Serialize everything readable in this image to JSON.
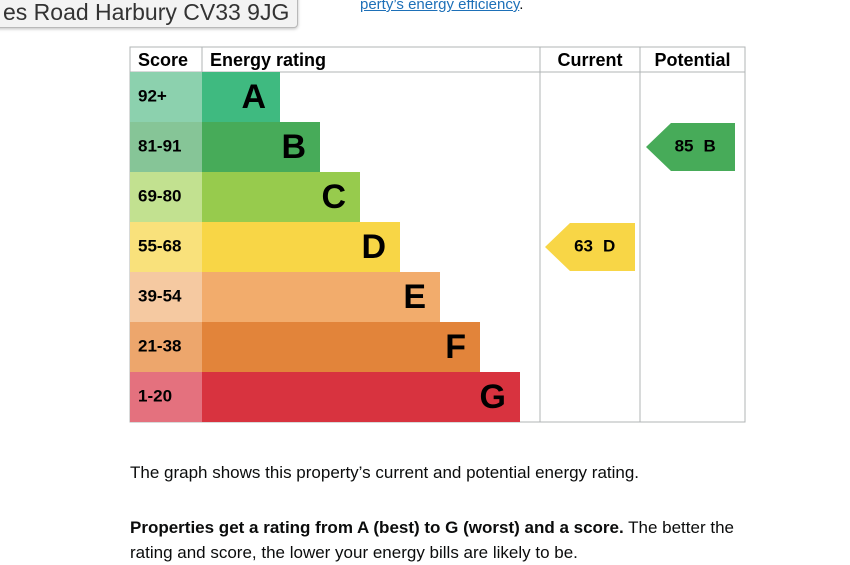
{
  "tooltip": "es Road Harbury CV33 9JG",
  "link": {
    "text": "perty’s energy efficiency",
    "suffix": "."
  },
  "epc": {
    "headers": [
      "Score",
      "Energy rating",
      "Current",
      "Potential"
    ],
    "rows": [
      {
        "score": "92+",
        "band": "A"
      },
      {
        "score": "81-91",
        "band": "B"
      },
      {
        "score": "69-80",
        "band": "C"
      },
      {
        "score": "55-68",
        "band": "D"
      },
      {
        "score": "39-54",
        "band": "E"
      },
      {
        "score": "21-38",
        "band": "F"
      },
      {
        "score": "1-20",
        "band": "G"
      }
    ],
    "current": {
      "score": 63,
      "band": "D"
    },
    "potential": {
      "score": 85,
      "band": "B"
    }
  },
  "paragraphs": [
    {
      "text": "The graph shows this property’s current and potential energy rating."
    },
    {
      "bold": "Properties get a rating from A (best) to G (worst) and a score.",
      "text": " The better the rating and score, the lower your energy bills are likely to be."
    }
  ]
}
